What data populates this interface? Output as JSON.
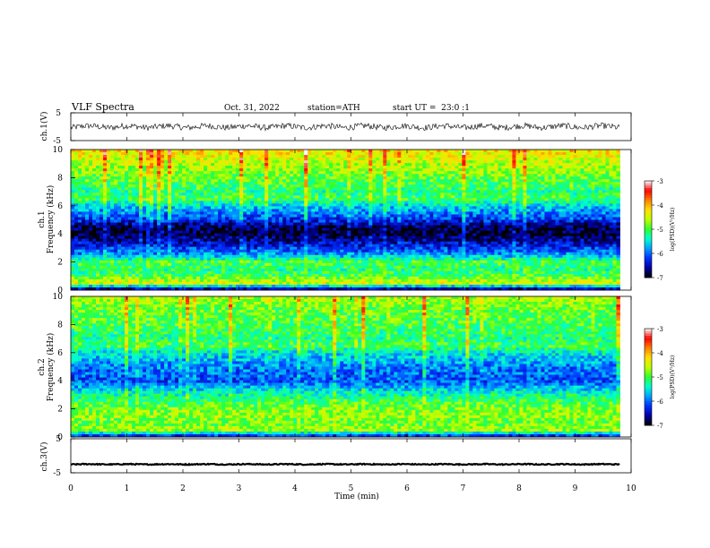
{
  "header": {
    "title": "VLF Spectra",
    "date": "Oct. 31, 2022",
    "station": "station=ATH",
    "start": "start UT =  23:0 :1"
  },
  "chart_data": [
    {
      "type": "line",
      "id": "ch1_waveform",
      "ylabel": "ch.1(V)",
      "xlim": [
        0,
        10
      ],
      "ylim": [
        -5,
        5
      ],
      "y_ticks": [
        -5,
        5
      ],
      "data_end_min": 9.8,
      "description_values": {
        "center": 0,
        "noise_amplitude": 1
      }
    },
    {
      "type": "heatmap",
      "id": "ch1_spectrogram",
      "ylabel": "ch.1\nFrequency (kHz)",
      "xlim": [
        0,
        10
      ],
      "ylim": [
        0,
        10
      ],
      "y_ticks": [
        0,
        2,
        4,
        6,
        8,
        10
      ],
      "data_end_min": 9.8,
      "colorbar": {
        "label": "log(PSD)(V²/Hz)",
        "range": [
          -7,
          -3
        ],
        "ticks": [
          -7,
          -6,
          -5,
          -4,
          -3
        ]
      },
      "band_profile_khz": [
        {
          "f": 10.0,
          "v": -4.2
        },
        {
          "f": 9.0,
          "v": -4.6
        },
        {
          "f": 8.0,
          "v": -4.9
        },
        {
          "f": 7.0,
          "v": -5.2
        },
        {
          "f": 6.5,
          "v": -5.0
        },
        {
          "f": 6.0,
          "v": -5.6
        },
        {
          "f": 5.0,
          "v": -6.2
        },
        {
          "f": 4.5,
          "v": -6.8
        },
        {
          "f": 4.0,
          "v": -6.9
        },
        {
          "f": 3.0,
          "v": -6.2
        },
        {
          "f": 2.5,
          "v": -5.8
        },
        {
          "f": 2.0,
          "v": -5.0
        },
        {
          "f": 1.5,
          "v": -5.2
        },
        {
          "f": 1.0,
          "v": -5.0
        },
        {
          "f": 0.5,
          "v": -4.4
        },
        {
          "f": 0.0,
          "v": -7.0
        }
      ]
    },
    {
      "type": "heatmap",
      "id": "ch2_spectrogram",
      "ylabel": "ch.2\nFrequency (kHz)",
      "xlim": [
        0,
        10
      ],
      "ylim": [
        0,
        10
      ],
      "y_ticks": [
        0,
        2,
        4,
        6,
        8,
        10
      ],
      "data_end_min": 9.8,
      "colorbar": {
        "label": "log(PSD)(V²/Hz)",
        "range": [
          -7,
          -3
        ],
        "ticks": [
          -7,
          -6,
          -5,
          -4,
          -3
        ]
      },
      "band_profile_khz": [
        {
          "f": 10.0,
          "v": -4.6
        },
        {
          "f": 9.0,
          "v": -4.9
        },
        {
          "f": 8.0,
          "v": -5.0
        },
        {
          "f": 7.0,
          "v": -5.2
        },
        {
          "f": 6.5,
          "v": -5.0
        },
        {
          "f": 6.0,
          "v": -5.5
        },
        {
          "f": 5.0,
          "v": -5.9
        },
        {
          "f": 4.5,
          "v": -6.0
        },
        {
          "f": 4.0,
          "v": -6.1
        },
        {
          "f": 3.0,
          "v": -5.3
        },
        {
          "f": 2.0,
          "v": -4.8
        },
        {
          "f": 1.5,
          "v": -4.7
        },
        {
          "f": 1.0,
          "v": -4.9
        },
        {
          "f": 0.5,
          "v": -4.6
        },
        {
          "f": 0.0,
          "v": -6.5
        }
      ]
    },
    {
      "type": "line",
      "id": "ch3_waveform",
      "ylabel": "ch.3(V)",
      "xlim": [
        0,
        10
      ],
      "ylim": [
        -5,
        5
      ],
      "y_ticks": [
        -5,
        5
      ],
      "data_end_min": 9.8,
      "description_values": {
        "center": -2.5,
        "noise_amplitude": 0.3
      }
    }
  ],
  "xaxis": {
    "label": "Time (min)",
    "ticks": [
      0,
      1,
      2,
      3,
      4,
      5,
      6,
      7,
      8,
      9,
      10
    ]
  },
  "colorscale": [
    "#000000",
    "#0000a0",
    "#0030ff",
    "#00a0ff",
    "#00ffd0",
    "#30ff30",
    "#c0ff00",
    "#ffe000",
    "#ff8000",
    "#ff0000",
    "#ffffff"
  ]
}
